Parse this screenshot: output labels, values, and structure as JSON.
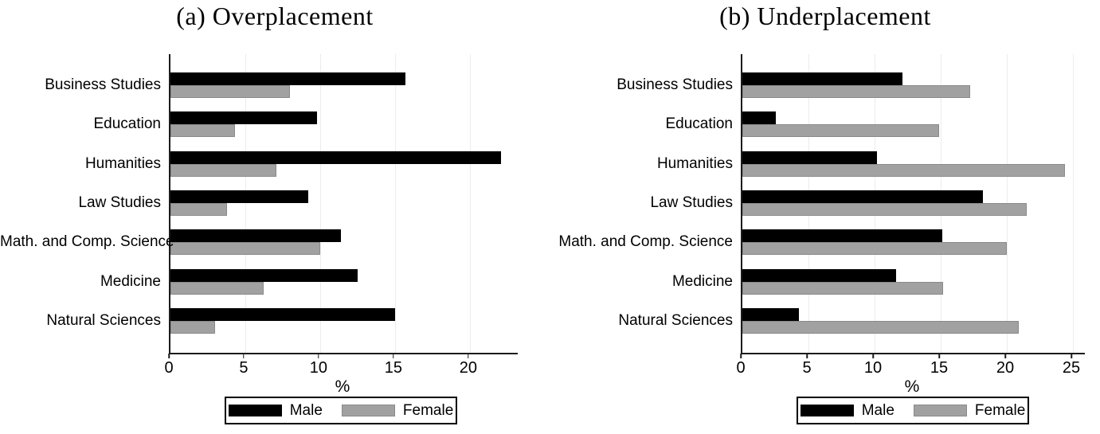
{
  "colors": {
    "male": "#000000",
    "female": "#a1a1a1",
    "gridline": "#ececec",
    "axis": "#1b1b1b"
  },
  "chart_data": [
    {
      "id": "overplacement",
      "type": "bar",
      "orientation": "horizontal",
      "title": "(a) Overplacement",
      "xlabel": "%",
      "xlim": [
        0,
        23.2
      ],
      "xticks": [
        0,
        5,
        10,
        15,
        20
      ],
      "grid": true,
      "legend_position": "bottom",
      "categories": [
        "Business Studies",
        "Education",
        "Humanities",
        "Law Studies",
        "Math. and Comp. Science",
        "Medicine",
        "Natural Sciences"
      ],
      "series": [
        {
          "name": "Male",
          "color_key": "male",
          "values": [
            15.7,
            9.8,
            22.1,
            9.2,
            11.4,
            12.5,
            15.0
          ]
        },
        {
          "name": "Female",
          "color_key": "female",
          "values": [
            8.0,
            4.3,
            7.1,
            3.8,
            10.0,
            6.2,
            3.0
          ]
        }
      ]
    },
    {
      "id": "underplacement",
      "type": "bar",
      "orientation": "horizontal",
      "title": "(b) Underplacement",
      "xlabel": "%",
      "xlim": [
        0,
        25.9
      ],
      "xticks": [
        0,
        5,
        10,
        15,
        20,
        25
      ],
      "grid": true,
      "legend_position": "bottom",
      "categories": [
        "Business Studies",
        "Education",
        "Humanities",
        "Law Studies",
        "Math. and Comp. Science",
        "Medicine",
        "Natural Sciences"
      ],
      "series": [
        {
          "name": "Male",
          "color_key": "male",
          "values": [
            12.1,
            2.5,
            10.2,
            18.2,
            15.1,
            11.6,
            4.3
          ]
        },
        {
          "name": "Female",
          "color_key": "female",
          "values": [
            17.2,
            14.9,
            24.4,
            21.5,
            20.0,
            15.2,
            20.9
          ]
        }
      ]
    }
  ]
}
